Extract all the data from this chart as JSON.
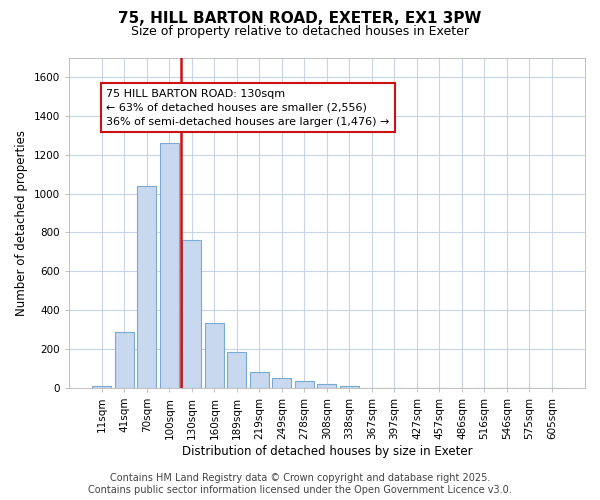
{
  "title_line1": "75, HILL BARTON ROAD, EXETER, EX1 3PW",
  "title_line2": "Size of property relative to detached houses in Exeter",
  "xlabel": "Distribution of detached houses by size in Exeter",
  "ylabel": "Number of detached properties",
  "categories": [
    "11sqm",
    "41sqm",
    "70sqm",
    "100sqm",
    "130sqm",
    "160sqm",
    "189sqm",
    "219sqm",
    "249sqm",
    "278sqm",
    "308sqm",
    "338sqm",
    "367sqm",
    "397sqm",
    "427sqm",
    "457sqm",
    "486sqm",
    "516sqm",
    "546sqm",
    "575sqm",
    "605sqm"
  ],
  "values": [
    10,
    285,
    1040,
    1260,
    760,
    335,
    185,
    80,
    50,
    35,
    20,
    10,
    0,
    0,
    0,
    0,
    0,
    0,
    0,
    0,
    0
  ],
  "bar_color": "#c8d8ee",
  "bar_edge_color": "#7aaad4",
  "red_line_x": 3.5,
  "red_line_color": "#cc1111",
  "annotation_title": "75 HILL BARTON ROAD: 130sqm",
  "annotation_line1": "← 63% of detached houses are smaller (2,556)",
  "annotation_line2": "36% of semi-detached houses are larger (1,476) →",
  "annotation_box_edge_color": "#cc1111",
  "ylim": [
    0,
    1700
  ],
  "yticks": [
    0,
    200,
    400,
    600,
    800,
    1000,
    1200,
    1400,
    1600
  ],
  "background_color": "#ffffff",
  "plot_background_color": "#ffffff",
  "grid_color": "#c8d4e8",
  "title_fontsize": 11,
  "subtitle_fontsize": 9,
  "axis_label_fontsize": 8.5,
  "tick_fontsize": 7.5,
  "annotation_fontsize": 8,
  "footer_fontsize": 7,
  "footer_line1": "Contains HM Land Registry data © Crown copyright and database right 2025.",
  "footer_line2": "Contains public sector information licensed under the Open Government Licence v3.0."
}
